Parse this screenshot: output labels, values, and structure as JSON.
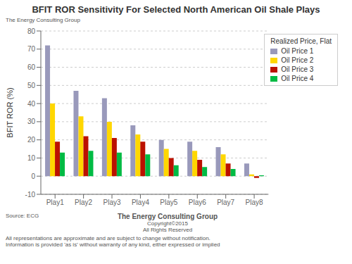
{
  "chart_data": {
    "type": "bar",
    "title": "BFIT ROR Sensitivity For Selected North American Oil Shale Plays",
    "ylabel": "BFIT ROR (%)",
    "categories": [
      "Play1",
      "Play2",
      "Play3",
      "Play4",
      "Play5",
      "Play6",
      "Play7",
      "Play8"
    ],
    "series": [
      {
        "name": "Oil Price 1",
        "color": "#9999BB",
        "values": [
          72,
          47,
          43,
          28,
          20,
          19,
          16,
          7
        ]
      },
      {
        "name": "Oil Price 2",
        "color": "#FFD700",
        "values": [
          40,
          33,
          30,
          23,
          15,
          14,
          12,
          1
        ]
      },
      {
        "name": "Oil Price 3",
        "color": "#BB1100",
        "values": [
          19,
          22,
          21,
          19,
          10,
          9,
          7,
          -1
        ]
      },
      {
        "name": "Oil Price 4",
        "color": "#00BB44",
        "values": [
          13,
          14,
          13,
          12,
          6,
          5,
          4,
          0.5
        ]
      }
    ],
    "ylim": [
      -10,
      80
    ],
    "yticks": [
      -10,
      0,
      10,
      20,
      30,
      40,
      50,
      60,
      70,
      80
    ],
    "grid": true,
    "legend": "upper right",
    "legend_title": "Realized Price, Flat",
    "annotations": [
      "The Energy Consulting Group",
      "Source: ECG",
      "The Energy Consulting Group",
      "Copyright©2015",
      "All Rights Reserved",
      "All representations are approximate and are subject to change without notification.",
      "Information is provided 'as is' without warranty of any kind, either expressed or implied"
    ]
  }
}
